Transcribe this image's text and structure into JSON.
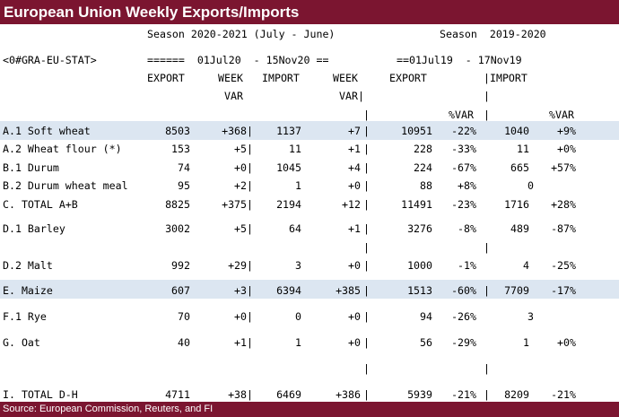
{
  "title": "European Union Weekly Exports/Imports",
  "footer": "Source: European Commission, Reuters, and FI",
  "season_current": "Season 2020-2021 (July - June)",
  "season_prior": "Season  2019-2020",
  "ric_code": "<0#GRA-EU-STAT>",
  "date_range_current": "======  01Jul20  - 15Nov20 ==",
  "date_range_prior": "==01Jul19  - 17Nov19",
  "headers": {
    "export": "EXPORT",
    "week": "WEEK",
    "var": "VAR",
    "import": "IMPORT",
    "week_right": "WEEK",
    "var_right": "VAR|",
    "export_prior": "EXPORT",
    "import_prior": "|IMPORT",
    "pct_var": "%VAR",
    "pct_var_import": "%VAR"
  },
  "rows": [
    {
      "label": "A.1 Soft wheat",
      "export": "8503",
      "week_var_export": "+368|",
      "import": "1137",
      "week_var_import": "+7",
      "export_prior": "10951",
      "pct_var_export": "-22%",
      "import_prior": "1040",
      "pct_var_import": "+9%"
    },
    {
      "label": "A.2 Wheat flour (*)",
      "export": "153",
      "week_var_export": "+5|",
      "import": "11",
      "week_var_import": "+1",
      "export_prior": "228",
      "pct_var_export": "-33%",
      "import_prior": "11",
      "pct_var_import": "+0%"
    },
    {
      "label": "B.1 Durum",
      "export": "74",
      "week_var_export": "+0|",
      "import": "1045",
      "week_var_import": "+4",
      "export_prior": "224",
      "pct_var_export": "-67%",
      "import_prior": "665",
      "pct_var_import": "+57%"
    },
    {
      "label": "B.2 Durum wheat meal",
      "export": "95",
      "week_var_export": "+2|",
      "import": "1",
      "week_var_import": "+0",
      "export_prior": "88",
      "pct_var_export": "+8%",
      "import_prior": "0",
      "pct_var_import": ""
    },
    {
      "label": "C. TOTAL A+B",
      "export": "8825",
      "week_var_export": "+375|",
      "import": "2194",
      "week_var_import": "+12",
      "export_prior": "11491",
      "pct_var_export": "-23%",
      "import_prior": "1716",
      "pct_var_import": "+28%"
    },
    {
      "label": "D.1 Barley",
      "export": "3002",
      "week_var_export": "+5|",
      "import": "64",
      "week_var_import": "+1",
      "export_prior": "3276",
      "pct_var_export": "-8%",
      "import_prior": "489",
      "pct_var_import": "-87%"
    },
    {
      "label": "D.2 Malt",
      "export": "992",
      "week_var_export": "+29|",
      "import": "3",
      "week_var_import": "+0",
      "export_prior": "1000",
      "pct_var_export": "-1%",
      "import_prior": "4",
      "pct_var_import": "-25%"
    },
    {
      "label": "E. Maize",
      "export": "607",
      "week_var_export": "+3|",
      "import": "6394",
      "week_var_import": "+385",
      "export_prior": "1513",
      "pct_var_export": "-60%",
      "import_prior": "7709",
      "pct_var_import": "-17%"
    },
    {
      "label": "F.1 Rye",
      "export": "70",
      "week_var_export": "+0|",
      "import": "0",
      "week_var_import": "+0",
      "export_prior": "94",
      "pct_var_export": "-26%",
      "import_prior": "3",
      "pct_var_import": ""
    },
    {
      "label": "G. Oat",
      "export": "40",
      "week_var_export": "+1|",
      "import": "1",
      "week_var_import": "+0",
      "export_prior": "56",
      "pct_var_export": "-29%",
      "import_prior": "1",
      "pct_var_import": "+0%"
    },
    {
      "label": "I. TOTAL D-H",
      "export": "4711",
      "week_var_export": "+38|",
      "import": "6469",
      "week_var_import": "+386",
      "export_prior": "5939",
      "pct_var_export": "-21%",
      "import_prior": "8209",
      "pct_var_import": "-21%"
    }
  ]
}
